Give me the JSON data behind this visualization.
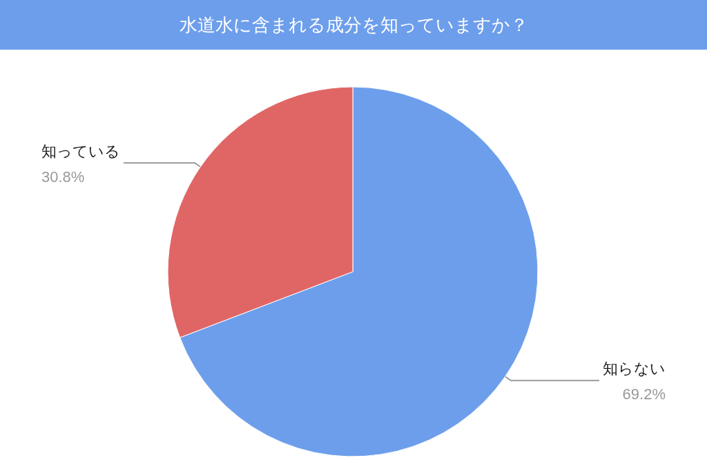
{
  "chart_data": {
    "type": "pie",
    "title": "水道水に含まれる成分を知っていますか？",
    "categories": [
      "知らない",
      "知っている"
    ],
    "values": [
      69.2,
      30.8
    ],
    "colors": [
      "#6d9eeb",
      "#e06666"
    ],
    "value_labels": [
      "69.2%",
      "30.8%"
    ],
    "legend": false
  }
}
